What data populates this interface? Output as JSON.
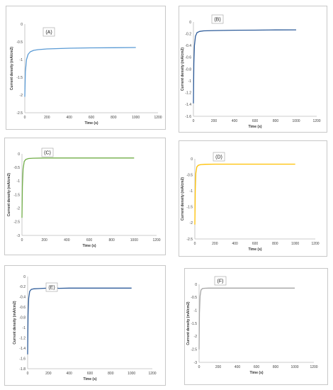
{
  "chart_data": [
    {
      "type": "line",
      "panel_label": "(A)",
      "xlabel": "Time (s)",
      "ylabel": "Current density (mA/cm2)",
      "xlim": [
        0,
        1200
      ],
      "ylim": [
        -2.5,
        0
      ],
      "x_ticks": [
        "0",
        "200",
        "400",
        "600",
        "800",
        "1000",
        "1200"
      ],
      "y_ticks": [
        "0",
        "-0.5",
        "-1",
        "-1.5",
        "-2",
        "-2.5"
      ],
      "series": [
        {
          "color": "#5b9bd5",
          "x": [
            0,
            5,
            15,
            30,
            50,
            80,
            120,
            200,
            300,
            400,
            600,
            800,
            1000
          ],
          "y": [
            -2.05,
            -1.35,
            -1.0,
            -0.85,
            -0.78,
            -0.74,
            -0.72,
            -0.7,
            -0.69,
            -0.68,
            -0.67,
            -0.665,
            -0.66
          ]
        }
      ]
    },
    {
      "type": "line",
      "panel_label": "(B)",
      "xlabel": "Time (s)",
      "ylabel": "Current density (mA/cm2)",
      "xlim": [
        0,
        1200
      ],
      "ylim": [
        -1.6,
        0
      ],
      "x_ticks": [
        "0",
        "200",
        "400",
        "600",
        "800",
        "1000",
        "1200"
      ],
      "y_ticks": [
        "0",
        "-0.2",
        "-0.4",
        "-0.6",
        "-0.8",
        "-1",
        "-1.2",
        "-1.4",
        "-1.6"
      ],
      "series": [
        {
          "color": "#2e5c9a",
          "x": [
            0,
            4,
            10,
            20,
            35,
            60,
            100,
            200,
            400,
            600,
            800,
            1000
          ],
          "y": [
            -1.38,
            -0.7,
            -0.4,
            -0.24,
            -0.18,
            -0.16,
            -0.15,
            -0.145,
            -0.14,
            -0.138,
            -0.135,
            -0.133
          ]
        }
      ]
    },
    {
      "type": "line",
      "panel_label": "(C)",
      "xlabel": "Time (s)",
      "ylabel": "Current density (mA/cm2)",
      "xlim": [
        0,
        1200
      ],
      "ylim": [
        -3,
        0
      ],
      "x_ticks": [
        "0",
        "200",
        "400",
        "600",
        "800",
        "1000",
        "1200"
      ],
      "y_ticks": [
        "0",
        "-0.5",
        "-1",
        "-1.5",
        "-2",
        "-2.5",
        "-3"
      ],
      "series": [
        {
          "color": "#70ad47",
          "x": [
            0,
            4,
            10,
            20,
            35,
            60,
            100,
            200,
            400,
            600,
            800,
            1000
          ],
          "y": [
            -2.35,
            -1.2,
            -0.55,
            -0.28,
            -0.2,
            -0.17,
            -0.16,
            -0.15,
            -0.15,
            -0.15,
            -0.15,
            -0.15
          ]
        }
      ]
    },
    {
      "type": "line",
      "panel_label": "(D)",
      "xlabel": "Time (s)",
      "ylabel": "Current density (mA/cm2)",
      "xlim": [
        0,
        1200
      ],
      "ylim": [
        -2.5,
        0
      ],
      "x_ticks": [
        "0",
        "200",
        "400",
        "600",
        "800",
        "1000",
        "1200"
      ],
      "y_ticks": [
        "0",
        "-0.5",
        "-1",
        "-1.5",
        "-2",
        "-2.5"
      ],
      "series": [
        {
          "color": "#ffc000",
          "x": [
            0,
            4,
            10,
            20,
            35,
            60,
            100,
            200,
            400,
            600,
            800,
            1000
          ],
          "y": [
            -2.05,
            -1.0,
            -0.45,
            -0.25,
            -0.2,
            -0.18,
            -0.17,
            -0.165,
            -0.165,
            -0.165,
            -0.165,
            -0.165
          ]
        }
      ]
    },
    {
      "type": "line",
      "panel_label": "(E)",
      "xlabel": "Time (s)",
      "ylabel": "Current density (mA/cm2)",
      "xlim": [
        0,
        1200
      ],
      "ylim": [
        -1.8,
        0
      ],
      "x_ticks": [
        "0",
        "200",
        "400",
        "600",
        "800",
        "1000",
        "1200"
      ],
      "y_ticks": [
        "0",
        "-0.2",
        "-0.4",
        "-0.6",
        "-0.8",
        "-1",
        "-1.2",
        "-1.4",
        "-1.6",
        "-1.8"
      ],
      "series": [
        {
          "color": "#2e5c9a",
          "x": [
            0,
            4,
            10,
            20,
            35,
            60,
            100,
            150,
            200,
            250,
            300,
            400,
            600,
            800,
            1000
          ],
          "y": [
            -1.52,
            -0.75,
            -0.42,
            -0.29,
            -0.25,
            -0.24,
            -0.235,
            -0.23,
            -0.225,
            -0.215,
            -0.23,
            -0.225,
            -0.225,
            -0.225,
            -0.225
          ]
        }
      ]
    },
    {
      "type": "line",
      "panel_label": "(F)",
      "xlabel": "Time (s)",
      "ylabel": "Current density (mA/cm2)",
      "xlim": [
        0,
        1200
      ],
      "ylim": [
        -3,
        0
      ],
      "x_ticks": [
        "0",
        "200",
        "400",
        "600",
        "800",
        "1000",
        "1200"
      ],
      "y_ticks": [
        "0",
        "-0.5",
        "-1",
        "-1.5",
        "-2",
        "-2.5",
        "-3"
      ],
      "series": [
        {
          "color": "#a5a5a5",
          "x": [
            0,
            4,
            10,
            20,
            35,
            60,
            100,
            200,
            400,
            600,
            800,
            1000
          ],
          "y": [
            -2.5,
            -1.1,
            -0.45,
            -0.22,
            -0.16,
            -0.15,
            -0.145,
            -0.145,
            -0.145,
            -0.145,
            -0.145,
            -0.145
          ]
        }
      ]
    }
  ]
}
